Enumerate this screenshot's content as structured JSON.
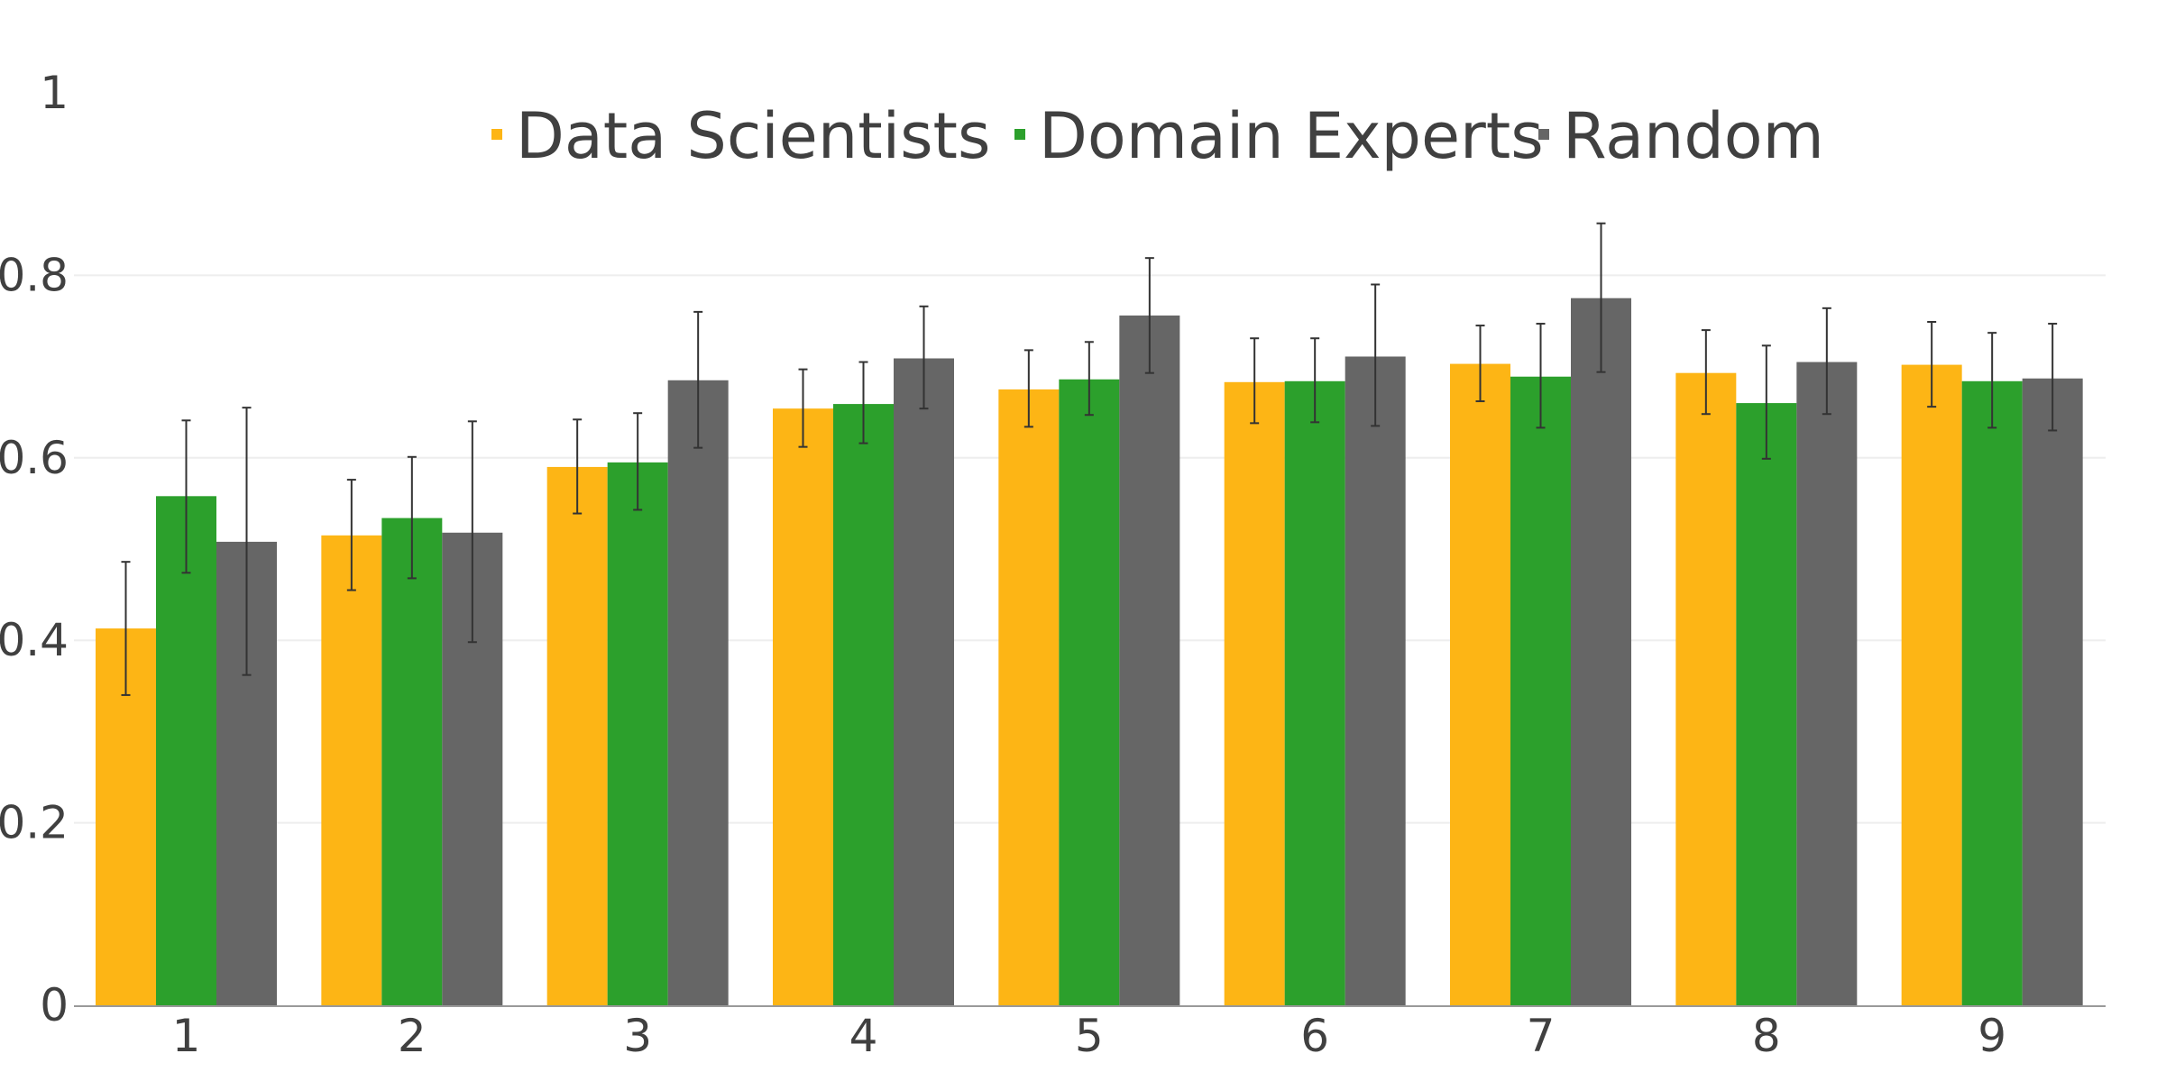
{
  "chart_data": {
    "type": "bar",
    "title": "",
    "xlabel": "",
    "ylabel": "",
    "categories": [
      "1",
      "2",
      "3",
      "4",
      "5",
      "6",
      "7",
      "8",
      "9"
    ],
    "ylim": [
      0,
      1
    ],
    "yticks": [
      "0",
      "0.2",
      "0.4",
      "0.6",
      "0.8",
      "1"
    ],
    "grid": true,
    "legend_position": "top-center",
    "series": [
      {
        "name": "Data Scientists",
        "color": "#FDB515",
        "values": [
          0.413,
          0.515,
          0.59,
          0.654,
          0.675,
          0.683,
          0.703,
          0.693,
          0.702
        ],
        "error_low": [
          0.34,
          0.455,
          0.539,
          0.612,
          0.634,
          0.638,
          0.662,
          0.648,
          0.656
        ],
        "error_high": [
          0.486,
          0.576,
          0.642,
          0.697,
          0.718,
          0.731,
          0.745,
          0.74,
          0.749
        ]
      },
      {
        "name": "Domain Experts",
        "color": "#2CA02C",
        "values": [
          0.558,
          0.534,
          0.595,
          0.659,
          0.686,
          0.684,
          0.689,
          0.66,
          0.684
        ],
        "error_low": [
          0.474,
          0.468,
          0.543,
          0.616,
          0.647,
          0.639,
          0.633,
          0.599,
          0.633
        ],
        "error_high": [
          0.641,
          0.601,
          0.649,
          0.705,
          0.727,
          0.731,
          0.747,
          0.723,
          0.737
        ]
      },
      {
        "name": "Random",
        "color": "#666666",
        "values": [
          0.508,
          0.518,
          0.685,
          0.709,
          0.756,
          0.711,
          0.775,
          0.705,
          0.687
        ],
        "error_low": [
          0.362,
          0.398,
          0.611,
          0.654,
          0.693,
          0.635,
          0.694,
          0.648,
          0.63
        ],
        "error_high": [
          0.655,
          0.64,
          0.76,
          0.766,
          0.819,
          0.79,
          0.857,
          0.764,
          0.747
        ]
      }
    ]
  }
}
